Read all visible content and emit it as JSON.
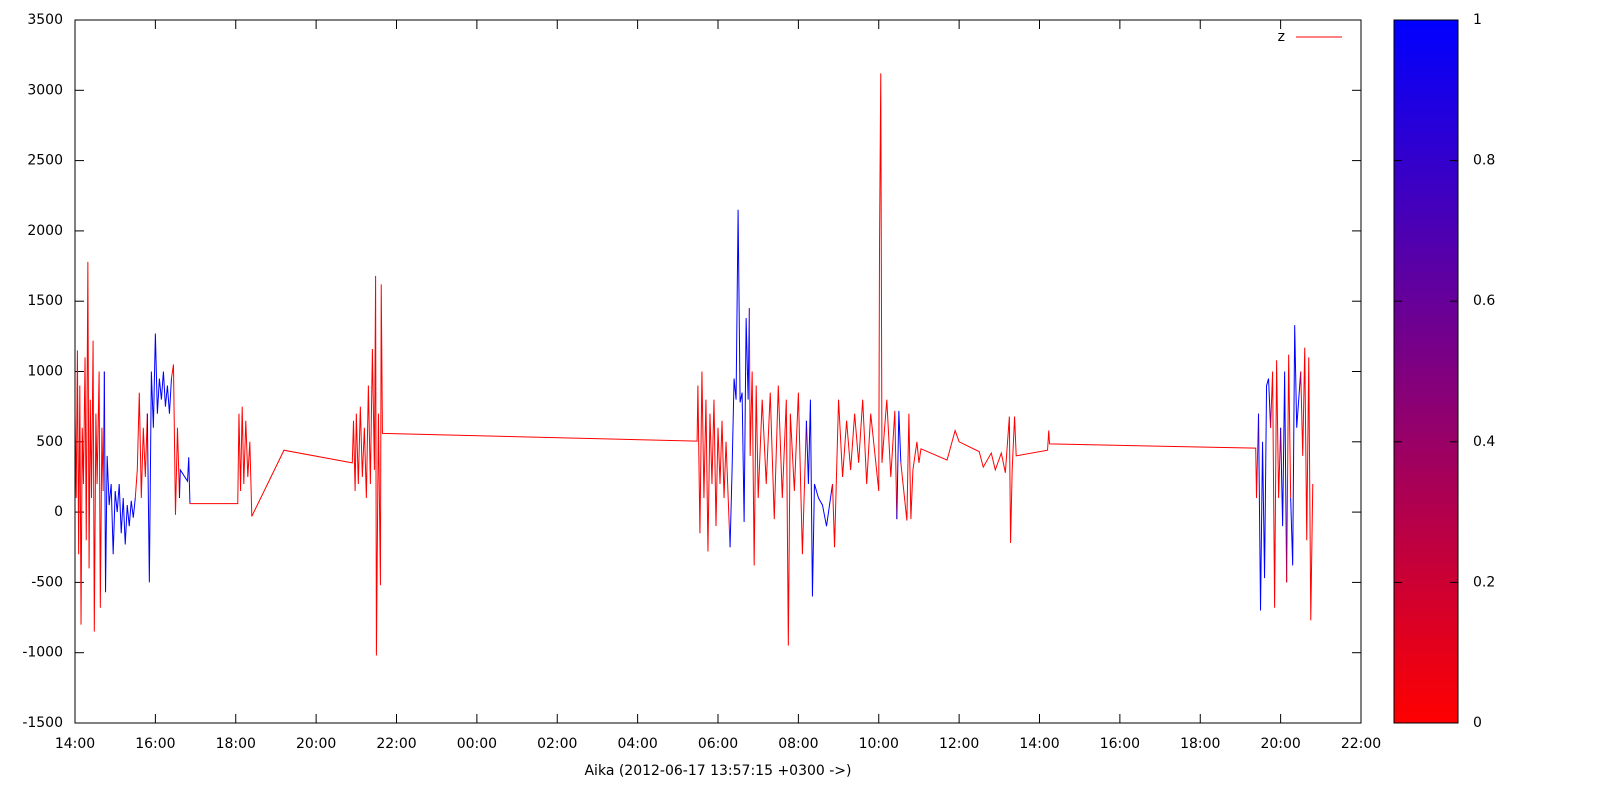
{
  "chart_data": {
    "type": "line",
    "x_label": "Aika (2012-06-17 13:57:15 +0300 ->)",
    "xlim": [
      14,
      46
    ],
    "xticks": [
      {
        "value": 14,
        "label": "14:00"
      },
      {
        "value": 16,
        "label": "16:00"
      },
      {
        "value": 18,
        "label": "18:00"
      },
      {
        "value": 20,
        "label": "20:00"
      },
      {
        "value": 22,
        "label": "22:00"
      },
      {
        "value": 24,
        "label": "00:00"
      },
      {
        "value": 26,
        "label": "02:00"
      },
      {
        "value": 28,
        "label": "04:00"
      },
      {
        "value": 30,
        "label": "06:00"
      },
      {
        "value": 32,
        "label": "08:00"
      },
      {
        "value": 34,
        "label": "10:00"
      },
      {
        "value": 36,
        "label": "12:00"
      },
      {
        "value": 38,
        "label": "14:00"
      },
      {
        "value": 40,
        "label": "16:00"
      },
      {
        "value": 42,
        "label": "18:00"
      },
      {
        "value": 44,
        "label": "20:00"
      },
      {
        "value": 46,
        "label": "22:00"
      }
    ],
    "ylim": [
      -1500,
      3500
    ],
    "yticks": [
      -1500,
      -1000,
      -500,
      0,
      500,
      1000,
      1500,
      2000,
      2500,
      3000,
      3500
    ],
    "zlim": [
      0,
      1
    ],
    "zticks": [
      0,
      0.2,
      0.4,
      0.6,
      0.8,
      1
    ],
    "palette": [
      "#ff0000",
      "#0000ff"
    ],
    "legend": "top-right",
    "x": [
      14.0,
      14.03,
      14.06,
      14.09,
      14.12,
      14.15,
      14.18,
      14.21,
      14.25,
      14.28,
      14.32,
      14.35,
      14.38,
      14.41,
      14.45,
      14.48,
      14.52,
      14.55,
      14.6,
      14.63,
      14.67,
      14.7,
      14.73,
      14.76,
      14.8,
      14.85,
      14.9,
      14.95,
      15.0,
      15.05,
      15.1,
      15.15,
      15.2,
      15.25,
      15.3,
      15.35,
      15.4,
      15.45,
      15.5,
      15.55,
      15.6,
      15.65,
      15.7,
      15.75,
      15.8,
      15.85,
      15.9,
      15.95,
      16.0,
      16.05,
      16.1,
      16.15,
      16.2,
      16.25,
      16.3,
      16.35,
      16.4,
      16.45,
      16.5,
      16.55,
      16.6,
      16.62,
      16.8,
      16.83,
      16.86,
      16.88,
      18.05,
      18.08,
      18.12,
      18.16,
      18.2,
      18.25,
      18.3,
      18.35,
      18.4,
      19.2,
      20.9,
      20.93,
      20.97,
      21.0,
      21.05,
      21.1,
      21.15,
      21.2,
      21.25,
      21.3,
      21.35,
      21.4,
      21.45,
      21.48,
      21.5,
      21.55,
      21.6,
      21.62,
      21.65,
      29.48,
      29.5,
      29.55,
      29.6,
      29.65,
      29.7,
      29.75,
      29.8,
      29.85,
      29.9,
      29.95,
      30.0,
      30.05,
      30.1,
      30.15,
      30.2,
      30.3,
      30.35,
      30.4,
      30.45,
      30.5,
      30.55,
      30.6,
      30.65,
      30.7,
      30.75,
      30.78,
      30.8,
      30.85,
      30.9,
      30.95,
      31.0,
      31.1,
      31.2,
      31.3,
      31.4,
      31.5,
      31.6,
      31.7,
      31.75,
      31.8,
      31.9,
      32.0,
      32.1,
      32.2,
      32.25,
      32.3,
      32.35,
      32.4,
      32.5,
      32.6,
      32.7,
      32.85,
      32.9,
      33.0,
      33.1,
      33.2,
      33.3,
      33.4,
      33.5,
      33.6,
      33.7,
      33.8,
      34.0,
      34.02,
      34.05,
      34.08,
      34.2,
      34.3,
      34.4,
      34.45,
      34.5,
      34.55,
      34.7,
      34.75,
      34.8,
      34.85,
      34.95,
      35.0,
      35.05,
      35.7,
      35.9,
      36.0,
      36.5,
      36.6,
      36.8,
      36.9,
      37.05,
      37.15,
      37.25,
      37.28,
      37.32,
      37.38,
      37.42,
      38.2,
      38.23,
      38.25,
      43.38,
      43.4,
      43.45,
      43.5,
      43.55,
      43.6,
      43.65,
      43.7,
      43.75,
      43.8,
      43.85,
      43.9,
      43.95,
      44.0,
      44.05,
      44.1,
      44.15,
      44.2,
      44.25,
      44.3,
      44.35,
      44.4,
      44.5,
      44.55,
      44.6,
      44.65,
      44.7,
      44.75,
      44.8
    ],
    "series": [
      {
        "name": "z",
        "color": "#ff0000",
        "values": [
          700,
          100,
          1150,
          -300,
          900,
          -800,
          600,
          200,
          1100,
          -200,
          1780,
          -400,
          800,
          100,
          1220,
          -850,
          700,
          200,
          1000,
          -680,
          600,
          150,
          1000,
          -570,
          400,
          50,
          200,
          -300,
          150,
          0,
          200,
          -150,
          100,
          -230,
          50,
          -100,
          80,
          -40,
          100,
          300,
          850,
          100,
          600,
          250,
          700,
          -500,
          1000,
          600,
          1270,
          700,
          950,
          800,
          1000,
          750,
          900,
          700,
          950,
          1050,
          -20,
          600,
          100,
          300,
          220,
          390,
          60,
          60,
          60,
          700,
          150,
          750,
          200,
          650,
          250,
          500,
          -30,
          440,
          350,
          650,
          150,
          700,
          200,
          750,
          250,
          600,
          100,
          900,
          200,
          1160,
          300,
          1680,
          -1020,
          700,
          -520,
          1620,
          560,
          505,
          900,
          -150,
          1000,
          100,
          800,
          -280,
          700,
          200,
          800,
          -100,
          600,
          200,
          650,
          100,
          500,
          -250,
          300,
          950,
          800,
          2150,
          780,
          850,
          -70,
          1380,
          800,
          1450,
          400,
          1000,
          -380,
          900,
          100,
          800,
          200,
          850,
          -50,
          900,
          100,
          800,
          -950,
          700,
          150,
          850,
          -300,
          650,
          200,
          800,
          -600,
          200,
          100,
          50,
          -100,
          200,
          -250,
          800,
          250,
          650,
          300,
          700,
          350,
          800,
          200,
          700,
          150,
          1940,
          3120,
          350,
          800,
          250,
          720,
          -50,
          720,
          350,
          -60,
          700,
          -50,
          300,
          500,
          350,
          450,
          370,
          580,
          500,
          430,
          320,
          420,
          300,
          420,
          280,
          680,
          -220,
          300,
          680,
          400,
          440,
          580,
          485,
          455,
          100,
          700,
          -700,
          500,
          -470,
          900,
          950,
          600,
          1000,
          -680,
          1080,
          100,
          600,
          -100,
          1000,
          -500,
          1120,
          100,
          -380,
          1330,
          600,
          1000,
          400,
          1170,
          -200,
          1100,
          -770,
          200
        ],
        "z": [
          0,
          0,
          0,
          0,
          0,
          0,
          0,
          0,
          0,
          0,
          0,
          0,
          0,
          0,
          0,
          0,
          0,
          0,
          0,
          0,
          0,
          0,
          0,
          1,
          1,
          1,
          1,
          1,
          1,
          1,
          1,
          1,
          1,
          1,
          1,
          1,
          1,
          1,
          1,
          0,
          0,
          0,
          0,
          0,
          0,
          1,
          1,
          1,
          1,
          1,
          1,
          1,
          1,
          1,
          1,
          1,
          1,
          0,
          0,
          0,
          0,
          1,
          1,
          1,
          1,
          0,
          0,
          0,
          0,
          0,
          0,
          0,
          0,
          0,
          0,
          0,
          0,
          0,
          0,
          0,
          0,
          0,
          0,
          0,
          0,
          0,
          0,
          0,
          0,
          0,
          0,
          0,
          0,
          0,
          0,
          0,
          0,
          0,
          0,
          0,
          0,
          0,
          0,
          0,
          0,
          0,
          0,
          0,
          0,
          0,
          0,
          0,
          1,
          1,
          1,
          1,
          1,
          1,
          1,
          1,
          1,
          1,
          0,
          0,
          0,
          0,
          0,
          0,
          0,
          0,
          0,
          0,
          0,
          0,
          0,
          0,
          0,
          0,
          0,
          0,
          1,
          1,
          1,
          1,
          1,
          1,
          1,
          1,
          0,
          0,
          0,
          0,
          0,
          0,
          0,
          0,
          0,
          0,
          0,
          0,
          0,
          0,
          0,
          0,
          0,
          0,
          1,
          1,
          0,
          0,
          0,
          0,
          0,
          0,
          0,
          0,
          0,
          0,
          0,
          0,
          0,
          0,
          0,
          0,
          0,
          0,
          0,
          0,
          0,
          0,
          0,
          0,
          0,
          0,
          0,
          1,
          1,
          1,
          1,
          1,
          1,
          0,
          0,
          0,
          0,
          0,
          1,
          1,
          1,
          0,
          0,
          1,
          1,
          1,
          1,
          0,
          0,
          0,
          0,
          0,
          0
        ]
      }
    ]
  }
}
